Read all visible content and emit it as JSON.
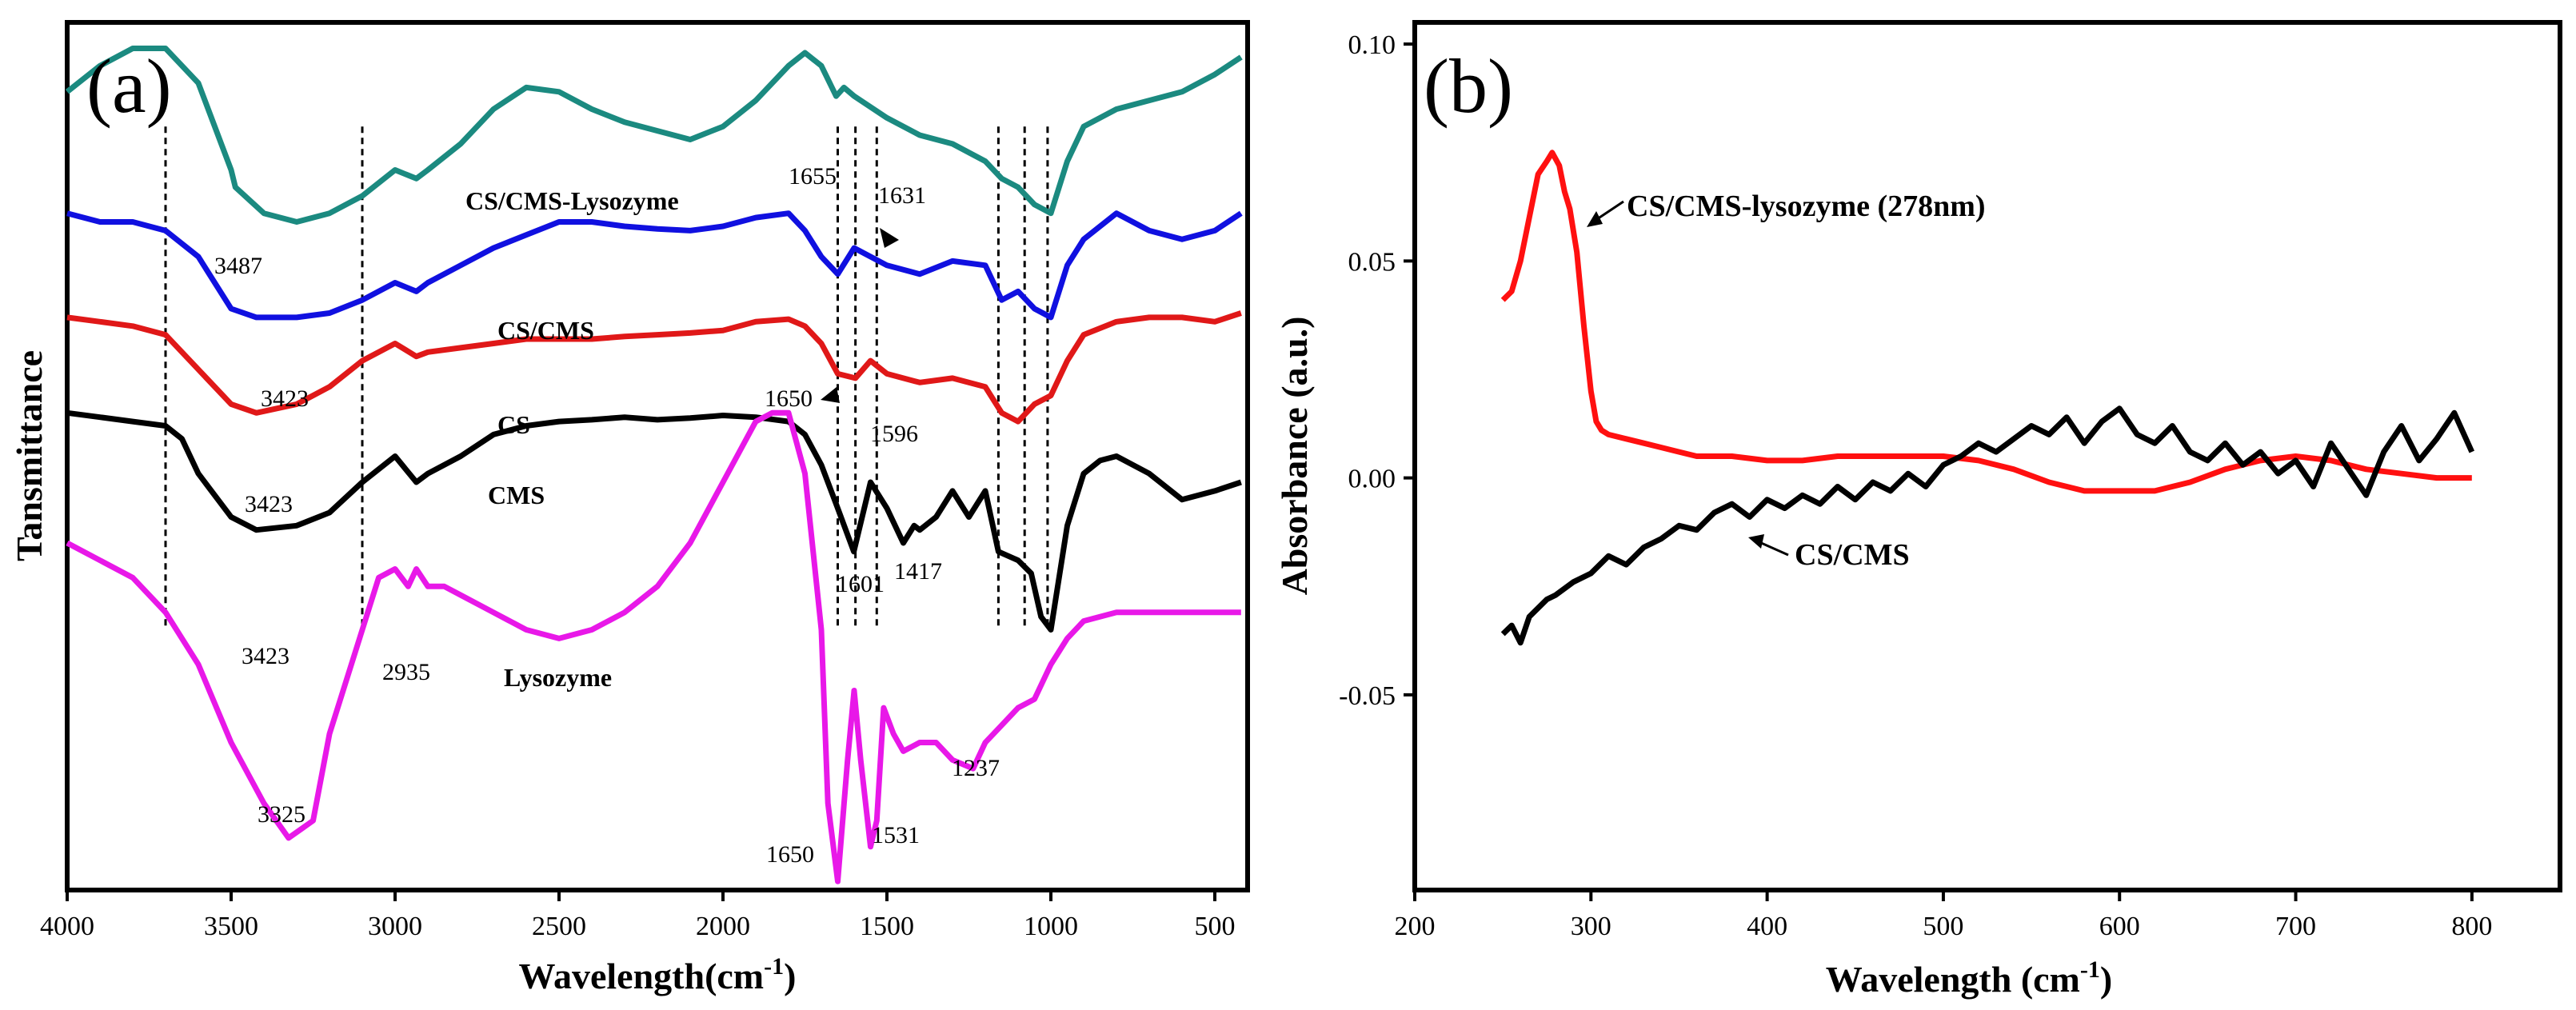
{
  "chart_data": [
    {
      "panel": "(a)",
      "type": "line",
      "xlabel": "Wavelength(cm",
      "xlabel_sup": "-1",
      "xlabel_end": ")",
      "ylabel": "Tansmittance",
      "xlim": [
        4000,
        400
      ],
      "ylim": [
        0,
        100
      ],
      "xticks": [
        4000,
        3500,
        3000,
        2500,
        2000,
        1500,
        1000,
        500
      ],
      "show_yticks": false,
      "series": [
        {
          "name": "CS/CMS-Lysozyme",
          "color": "#1b8a80",
          "x": [
            4000,
            3900,
            3800,
            3700,
            3600,
            3500,
            3487,
            3400,
            3300,
            3200,
            3100,
            3000,
            2935,
            2900,
            2800,
            2700,
            2600,
            2500,
            2400,
            2300,
            2200,
            2100,
            2000,
            1900,
            1800,
            1750,
            1700,
            1655,
            1631,
            1600,
            1500,
            1400,
            1300,
            1200,
            1150,
            1100,
            1050,
            1000,
            950,
            900,
            800,
            700,
            600,
            500,
            420
          ],
          "y": [
            92,
            95,
            97,
            97,
            93,
            83,
            81,
            78,
            77,
            78,
            80,
            83,
            82,
            83,
            86,
            90,
            92.5,
            92,
            90,
            88.5,
            87.5,
            86.5,
            88,
            91,
            95,
            96.5,
            95,
            91.5,
            92.5,
            91.5,
            89,
            87,
            86,
            84,
            82,
            81,
            79,
            78,
            84,
            88,
            90,
            91,
            92,
            94,
            96
          ]
        },
        {
          "name": "CS/CMS",
          "color": "#1010e0",
          "x": [
            4000,
            3900,
            3800,
            3700,
            3600,
            3500,
            3423,
            3300,
            3200,
            3100,
            3000,
            2935,
            2900,
            2800,
            2700,
            2600,
            2500,
            2400,
            2300,
            2200,
            2100,
            2000,
            1900,
            1800,
            1750,
            1700,
            1650,
            1600,
            1500,
            1400,
            1300,
            1200,
            1150,
            1100,
            1050,
            1000,
            950,
            900,
            800,
            700,
            600,
            500,
            420
          ],
          "y": [
            78,
            77,
            77,
            76,
            73,
            67,
            66,
            66,
            66.5,
            68,
            70,
            69,
            70,
            72,
            74,
            75.5,
            77,
            77,
            76.5,
            76.2,
            76,
            76.5,
            77.5,
            78,
            76,
            73,
            71,
            74,
            72,
            71,
            72.5,
            72,
            68,
            69,
            67,
            66,
            72,
            75,
            78,
            76,
            75,
            76,
            78
          ]
        },
        {
          "name": "CS",
          "color": "#e01818",
          "x": [
            4000,
            3900,
            3800,
            3700,
            3600,
            3500,
            3423,
            3300,
            3200,
            3100,
            3000,
            2935,
            2900,
            2800,
            2700,
            2600,
            2500,
            2400,
            2300,
            2200,
            2100,
            2000,
            1900,
            1800,
            1750,
            1700,
            1650,
            1596,
            1550,
            1500,
            1450,
            1400,
            1300,
            1200,
            1150,
            1100,
            1050,
            1000,
            950,
            900,
            800,
            700,
            600,
            500,
            420
          ],
          "y": [
            66,
            65.5,
            65,
            64,
            60,
            56,
            55,
            56,
            58,
            61,
            63,
            61.5,
            62,
            62.5,
            63,
            63.5,
            63.5,
            63.5,
            63.8,
            64,
            64.2,
            64.5,
            65.5,
            65.8,
            65,
            63,
            59.5,
            59,
            61,
            59.5,
            59,
            58.5,
            59,
            58,
            55,
            54,
            56,
            57,
            61,
            64,
            65.5,
            66,
            66,
            65.5,
            66.5
          ]
        },
        {
          "name": "CMS",
          "color": "#000000",
          "x": [
            4000,
            3900,
            3800,
            3700,
            3650,
            3600,
            3500,
            3423,
            3300,
            3200,
            3100,
            3000,
            2935,
            2900,
            2800,
            2700,
            2600,
            2500,
            2400,
            2300,
            2200,
            2100,
            2000,
            1900,
            1800,
            1750,
            1700,
            1650,
            1601,
            1550,
            1500,
            1450,
            1417,
            1400,
            1350,
            1300,
            1250,
            1200,
            1160,
            1100,
            1060,
            1030,
            1000,
            950,
            900,
            850,
            800,
            700,
            600,
            500,
            420
          ],
          "y": [
            55,
            54.5,
            54,
            53.5,
            52,
            48,
            43,
            41.5,
            42,
            43.5,
            47,
            50,
            47,
            48,
            50,
            52.5,
            53.5,
            54,
            54.2,
            54.5,
            54.2,
            54.4,
            54.7,
            54.5,
            54,
            52.5,
            49,
            44,
            39,
            47,
            44,
            40,
            42,
            41.5,
            43,
            46,
            43,
            46,
            39,
            38,
            36.5,
            31.5,
            30,
            42,
            48,
            49.5,
            50,
            48,
            45,
            46,
            47
          ]
        },
        {
          "name": "Lysozyme",
          "color": "#e818e8",
          "x": [
            4000,
            3900,
            3800,
            3700,
            3600,
            3500,
            3400,
            3325,
            3250,
            3200,
            3100,
            3050,
            3000,
            2960,
            2935,
            2900,
            2850,
            2800,
            2700,
            2600,
            2500,
            2400,
            2300,
            2200,
            2100,
            2000,
            1900,
            1850,
            1800,
            1750,
            1700,
            1680,
            1650,
            1620,
            1600,
            1580,
            1550,
            1531,
            1510,
            1480,
            1450,
            1400,
            1350,
            1300,
            1237,
            1200,
            1150,
            1100,
            1050,
            1000,
            950,
            900,
            800,
            700,
            600,
            500,
            420
          ],
          "y": [
            40,
            38,
            36,
            32,
            26,
            17,
            10,
            6,
            8,
            18,
            30,
            36,
            37,
            35,
            37,
            35,
            35,
            34,
            32,
            30,
            29,
            30,
            32,
            35,
            40,
            47,
            54,
            55,
            55,
            48,
            30,
            10,
            1,
            15,
            23,
            15,
            5,
            8,
            21,
            18,
            16,
            17,
            17,
            15,
            14,
            17,
            19,
            21,
            22,
            26,
            29,
            31,
            32,
            32,
            32,
            32,
            32
          ]
        }
      ],
      "series_labels": [
        "CS/CMS-Lysozyme",
        "CS/CMS",
        "CS",
        "CMS",
        "Lysozyme"
      ],
      "annotations": [
        "3487",
        "3423",
        "3423",
        "3423",
        "3325",
        "2935",
        "1655",
        "1631",
        "1650",
        "1596",
        "1601",
        "1417",
        "1650",
        "1531",
        "1237"
      ],
      "reference_lines_x": [
        3700,
        3100,
        1650,
        1596,
        1531,
        1160,
        1080,
        1010
      ]
    },
    {
      "panel": "(b)",
      "type": "line",
      "xlabel": "Wavelength (cm",
      "xlabel_sup": "-1",
      "xlabel_end": ")",
      "ylabel": "Absorbance (a.u.)",
      "xlim": [
        200,
        850
      ],
      "ylim": [
        -0.095,
        0.105
      ],
      "xticks": [
        200,
        300,
        400,
        500,
        600,
        700,
        800
      ],
      "yticks": [
        "0.10",
        "0.05",
        "0.00",
        "-0.05"
      ],
      "ytick_values": [
        0.1,
        0.05,
        0.0,
        -0.05
      ],
      "series": [
        {
          "name": "CS/CMS-lysozyme (278nm)",
          "color": "#ff1010",
          "x": [
            250,
            255,
            260,
            265,
            270,
            275,
            278,
            282,
            285,
            288,
            292,
            296,
            300,
            303,
            306,
            310,
            320,
            330,
            340,
            350,
            360,
            380,
            400,
            420,
            440,
            460,
            480,
            500,
            520,
            540,
            560,
            580,
            600,
            620,
            640,
            660,
            680,
            700,
            720,
            740,
            760,
            780,
            800
          ],
          "y": [
            0.041,
            0.043,
            0.05,
            0.06,
            0.07,
            0.073,
            0.075,
            0.072,
            0.066,
            0.062,
            0.052,
            0.035,
            0.02,
            0.013,
            0.011,
            0.01,
            0.009,
            0.008,
            0.007,
            0.006,
            0.005,
            0.005,
            0.004,
            0.004,
            0.005,
            0.005,
            0.005,
            0.005,
            0.004,
            0.002,
            -0.001,
            -0.003,
            -0.003,
            -0.003,
            -0.001,
            0.002,
            0.004,
            0.005,
            0.004,
            0.002,
            0.001,
            0.0,
            0.0
          ]
        },
        {
          "name": "CS/CMS",
          "color": "#000000",
          "x": [
            250,
            255,
            260,
            265,
            270,
            275,
            280,
            290,
            300,
            310,
            320,
            330,
            340,
            350,
            360,
            370,
            380,
            390,
            400,
            410,
            420,
            430,
            440,
            450,
            460,
            470,
            480,
            490,
            500,
            510,
            520,
            530,
            540,
            550,
            560,
            570,
            580,
            590,
            600,
            610,
            620,
            630,
            640,
            650,
            660,
            670,
            680,
            690,
            700,
            710,
            720,
            730,
            740,
            750,
            760,
            770,
            780,
            790,
            800
          ],
          "y": [
            -0.036,
            -0.034,
            -0.038,
            -0.032,
            -0.03,
            -0.028,
            -0.027,
            -0.024,
            -0.022,
            -0.018,
            -0.02,
            -0.016,
            -0.014,
            -0.011,
            -0.012,
            -0.008,
            -0.006,
            -0.009,
            -0.005,
            -0.007,
            -0.004,
            -0.006,
            -0.002,
            -0.005,
            -0.001,
            -0.003,
            0.001,
            -0.002,
            0.003,
            0.005,
            0.008,
            0.006,
            0.009,
            0.012,
            0.01,
            0.014,
            0.008,
            0.013,
            0.016,
            0.01,
            0.008,
            0.012,
            0.006,
            0.004,
            0.008,
            0.003,
            0.006,
            0.001,
            0.004,
            -0.002,
            0.008,
            0.002,
            -0.004,
            0.006,
            0.012,
            0.004,
            0.009,
            0.015,
            0.006
          ]
        }
      ],
      "annotations": [
        "CS/CMS-lysozyme (278nm)",
        "CS/CMS"
      ]
    }
  ]
}
